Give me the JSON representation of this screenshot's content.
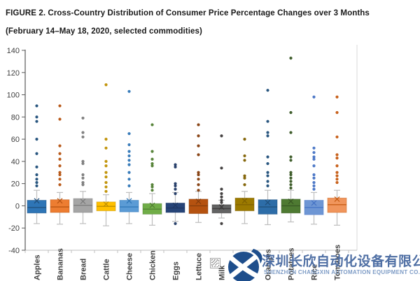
{
  "figure": {
    "title_line1": "FIGURE 2. Cross-Country Distribution of Consumer Price Percentage Changes over 3 Months",
    "title_line2": "(February 14–May 18, 2020, selected commodities)"
  },
  "watermark": {
    "company_cn": "深圳长欣自动化设备有限公司",
    "company_en": "SHENZHEN CHANGXIN AUTOMATION EQUIPMENT CO.,LTD",
    "logo_color": "#1E4E8C",
    "text_color_cn": "#4F6FA4",
    "text_color_en": "#7E9CC6"
  },
  "chart_data": {
    "type": "box",
    "title": "FIGURE 2. Cross-Country Distribution of Consumer Price Percentage Changes over 3 Months (February 14–May 18, 2020, selected commodities)",
    "xlabel": "",
    "ylabel": "",
    "ylim": [
      -40,
      140
    ],
    "ytick_labels": [
      -40,
      -20,
      0,
      20,
      40,
      60,
      80,
      100,
      120,
      140
    ],
    "grid": false,
    "legend": false,
    "categories": [
      "Apples",
      "Bananas",
      "Bread",
      "Cattle",
      "Cheese",
      "Chicken",
      "Eggs",
      "Lettuce",
      "Milk",
      "Onions",
      "Oranges",
      "Potatoes",
      "Rice",
      "Tomatoes"
    ],
    "series": [
      {
        "name": "Apples",
        "color": "#2E75B6",
        "dark": "#1F4E79",
        "whisker_low": -16,
        "q1": -6.5,
        "median": -1.5,
        "q3": 5,
        "whisker_high": 14,
        "mean": 4.5,
        "outliers_high": [
          90,
          80,
          76,
          60,
          47,
          35,
          28,
          24,
          21,
          18
        ],
        "outliers_low": []
      },
      {
        "name": "Bananas",
        "color": "#ED7D31",
        "dark": "#B55210",
        "whisker_low": -16.5,
        "q1": -6,
        "median": -1,
        "q3": 5.5,
        "whisker_high": 12,
        "mean": 4.5,
        "outliers_high": [
          90,
          78,
          54,
          47,
          42,
          36,
          30,
          28,
          24,
          19
        ],
        "outliers_low": []
      },
      {
        "name": "Bread",
        "color": "#A5A5A5",
        "dark": "#7B7B7B",
        "whisker_low": -16,
        "q1": -6,
        "median": 0.5,
        "q3": 6.5,
        "whisker_high": 13,
        "mean": 4,
        "outliers_high": [
          79,
          66,
          62,
          40,
          38,
          28,
          25,
          21,
          19
        ],
        "outliers_low": []
      },
      {
        "name": "Cattle",
        "color": "#FFC000",
        "dark": "#BF8F00",
        "whisker_low": -18,
        "q1": -4.5,
        "median": -0.5,
        "q3": 3.5,
        "whisker_high": 10,
        "mean": 1.5,
        "outliers_high": [
          109,
          60,
          52,
          40,
          36,
          30,
          26,
          21,
          17,
          13
        ],
        "outliers_low": []
      },
      {
        "name": "Cheese",
        "color": "#5B9BD5",
        "dark": "#2E75B6",
        "whisker_low": -16,
        "q1": -5.5,
        "median": -1,
        "q3": 5,
        "whisker_high": 12,
        "mean": 4.5,
        "outliers_high": [
          103,
          65,
          55,
          49,
          45,
          41,
          37,
          30,
          24,
          18
        ],
        "outliers_low": []
      },
      {
        "name": "Chicken",
        "color": "#70AD47",
        "dark": "#507E32",
        "whisker_low": -17.5,
        "q1": -7.5,
        "median": -3,
        "q3": 2,
        "whisker_high": 11,
        "mean": 0.5,
        "outliers_high": [
          73,
          49,
          42,
          38,
          36,
          19,
          17,
          14
        ],
        "outliers_low": []
      },
      {
        "name": "Eggs",
        "color": "#264478",
        "dark": "#1F3864",
        "whisker_low": -14,
        "q1": -6,
        "median": -2,
        "q3": 2.5,
        "whisker_high": 12,
        "mean": 0.5,
        "outliers_high": [
          37,
          35,
          20,
          18,
          15,
          11
        ],
        "outliers_low": [
          -16
        ]
      },
      {
        "name": "Lettuce",
        "color": "#B55210",
        "dark": "#843C0C",
        "whisker_low": -15,
        "q1": -7,
        "median": 0,
        "q3": 6,
        "whisker_high": 13,
        "mean": 4,
        "outliers_high": [
          73,
          63,
          54,
          46,
          30,
          28,
          24,
          19,
          14
        ],
        "outliers_low": []
      },
      {
        "name": "Milk",
        "color": "#636363",
        "dark": "#3B3838",
        "whisker_low": -11,
        "q1": -6.5,
        "median": -2.5,
        "q3": 1,
        "whisker_high": 5,
        "mean": -1,
        "outliers_high": [
          63,
          34,
          15,
          11,
          8,
          5,
          3
        ],
        "outliers_low": [
          -16
        ]
      },
      {
        "name": "Onions",
        "color": "#9C7A00",
        "dark": "#7F6000",
        "whisker_low": -16,
        "q1": -4.5,
        "median": 1,
        "q3": 7,
        "whisker_high": 13,
        "mean": 4.5,
        "outliers_high": [
          60,
          45,
          41,
          27,
          25,
          19
        ],
        "outliers_low": []
      },
      {
        "name": "Oranges",
        "color": "#2D6DA8",
        "dark": "#1F4E79",
        "whisker_low": -17,
        "q1": -7.5,
        "median": -1,
        "q3": 5.5,
        "whisker_high": 14,
        "mean": 3,
        "outliers_high": [
          104,
          76,
          66,
          63,
          44,
          38,
          30,
          27,
          22,
          18
        ],
        "outliers_low": []
      },
      {
        "name": "Potatoes",
        "color": "#4E7A32",
        "dark": "#375623",
        "whisker_low": -14.5,
        "q1": -6.5,
        "median": 0,
        "q3": 6,
        "whisker_high": 14,
        "mean": 4,
        "outliers_high": [
          133,
          84,
          66,
          44,
          41,
          30,
          28,
          25,
          22,
          19,
          16
        ],
        "outliers_low": []
      },
      {
        "name": "Rice",
        "color": "#6E96D4",
        "dark": "#4472C4",
        "whisker_low": -16.5,
        "q1": -8,
        "median": -1.5,
        "q3": 5,
        "whisker_high": 12,
        "mean": 2.5,
        "outliers_high": [
          98,
          52,
          48,
          44,
          42,
          36,
          28,
          25,
          21,
          18,
          15
        ],
        "outliers_low": []
      },
      {
        "name": "Tomatoes",
        "color": "#F0955C",
        "dark": "#C55A11",
        "whisker_low": -17.5,
        "q1": -6,
        "median": 1,
        "q3": 7,
        "whisker_high": 14,
        "mean": 6,
        "outliers_high": [
          98,
          84,
          62,
          46,
          43,
          36,
          30,
          27,
          24,
          21
        ],
        "outliers_low": []
      }
    ]
  }
}
